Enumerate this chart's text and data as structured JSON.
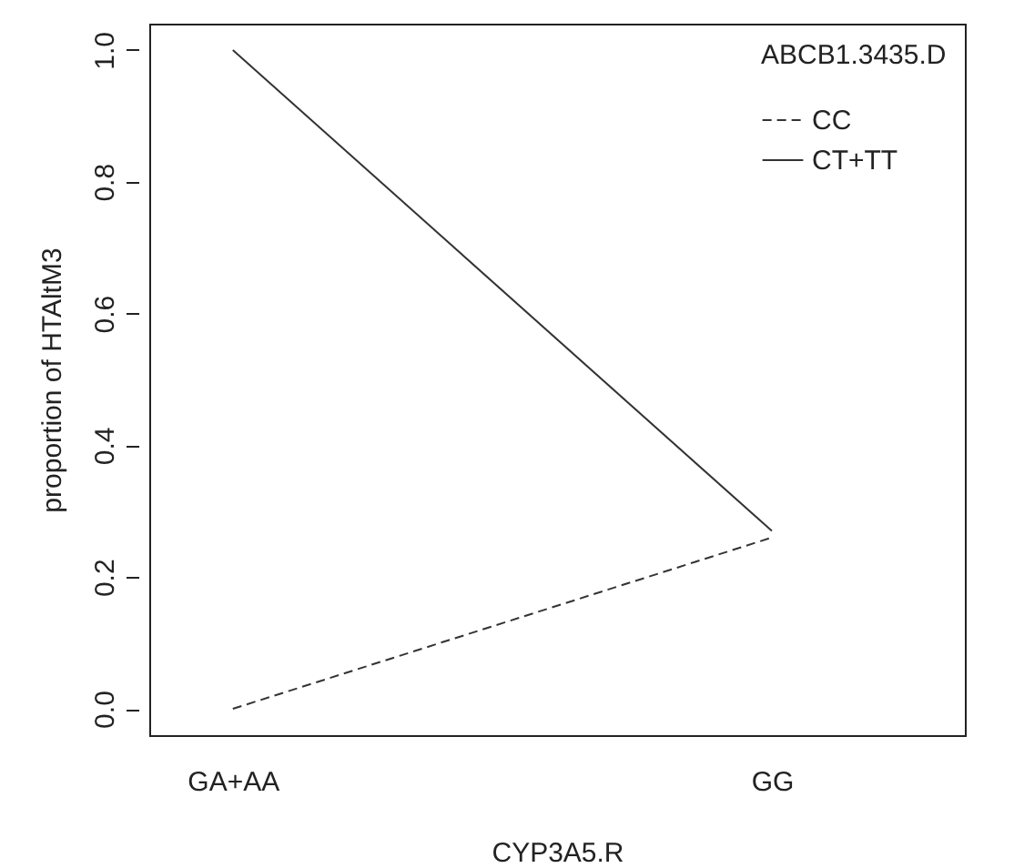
{
  "chart_data": {
    "type": "line",
    "xlabel": "CYP3A5.R",
    "ylabel": "proportion of HTAltM3",
    "legend_title": "ABCB1.3435.D",
    "categories": [
      "GA+AA",
      "GG"
    ],
    "series": [
      {
        "name": "CC",
        "color": "#333333",
        "line_style": "dashed",
        "values": [
          0,
          0.26
        ]
      },
      {
        "name": "CT+TT",
        "color": "#333333",
        "line_style": "solid",
        "values": [
          1.0,
          0.27
        ]
      }
    ],
    "ylim": [
      -0.04,
      1.04
    ],
    "yticks": [
      {
        "value": 0,
        "label": "0.0"
      },
      {
        "value": 0.2,
        "label": "0.2"
      },
      {
        "value": 0.4,
        "label": "0.4"
      },
      {
        "value": 0.6,
        "label": "0.6"
      },
      {
        "value": 0.8,
        "label": "0.8"
      },
      {
        "value": 1,
        "label": "1.0"
      }
    ],
    "grid": false,
    "legend": "top right",
    "marker": "none"
  }
}
